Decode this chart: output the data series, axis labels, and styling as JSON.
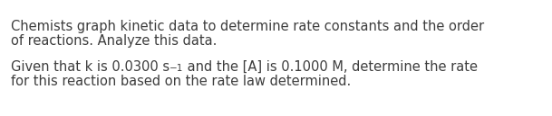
{
  "background_color": "#ffffff",
  "line1": "Chemists graph kinetic data to determine rate constants and the order",
  "line2": "of reactions. Analyze this data.",
  "line3_pre": "Given that k is 0.0300 s",
  "line3_sup": "−1",
  "line3_post": " and the [A] is 0.1000 M, determine the rate",
  "line4": "for this reaction based on the rate law determined.",
  "text_color": "#3d3d3d",
  "font_size": 10.5,
  "sup_font_size": 7.5,
  "font_family": "DejaVu Sans"
}
